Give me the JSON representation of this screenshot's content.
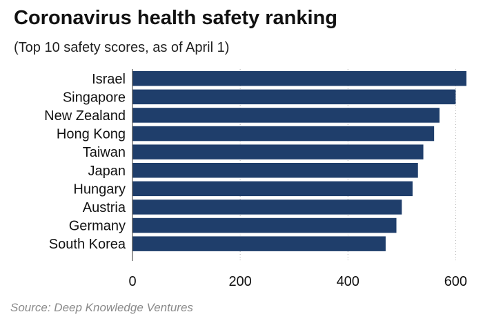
{
  "chart_data": {
    "type": "bar",
    "orientation": "horizontal",
    "title": "Coronavirus health safety ranking",
    "subtitle": "(Top 10 safety scores, as of April 1)",
    "source": "Source: Deep Knowledge Ventures",
    "categories": [
      "Israel",
      "Singapore",
      "New Zealand",
      "Hong Kong",
      "Taiwan",
      "Japan",
      "Hungary",
      "Austria",
      "Germany",
      "South Korea"
    ],
    "values": [
      620,
      600,
      570,
      560,
      540,
      530,
      520,
      500,
      490,
      470
    ],
    "xlim": [
      0,
      620
    ],
    "xticks": [
      0,
      200,
      400,
      600
    ],
    "tick_labels": [
      "0",
      "200",
      "400",
      "600"
    ],
    "grid": "vertical dotted",
    "bar_color": "#1f3e6b"
  }
}
